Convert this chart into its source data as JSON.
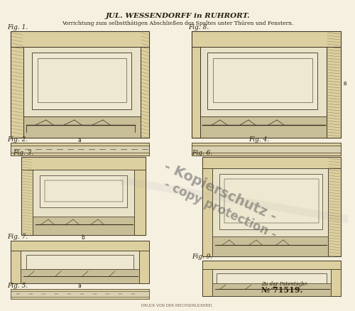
{
  "bg_color": "#f5f0e0",
  "paper_color": "#f2ece0",
  "title_line1": "JUL. WESSENDORFF in RUHRORT.",
  "title_line2": "Vorrichtung zum selbstthätigen Abschließen des Spaltes unter Thüren und Fenstern.",
  "patent_note": "Zu der Patentschr.",
  "patent_number": "№ 71519.",
  "bottom_text": "DRUCK VON DER REICHSDRUCKEREI.",
  "watermark_line1": "- Kopierschutz -",
  "watermark_line2": "- copy protection -",
  "fig_labels": [
    "Fig. 1.",
    "Fig. 2.",
    "Fig. 3.",
    "Fig. 4.",
    "Fig. 5.",
    "Fig. 6.",
    "Fig. 7.",
    "Fig. 8.",
    "Fig. 9."
  ],
  "line_color": "#3a3020",
  "hatch_color": "#5a4a30",
  "wood_color": "#c8b882",
  "shadow_color": "#8a7a60",
  "light_wood": "#ddd0a0",
  "dark_line": "#2a2010"
}
